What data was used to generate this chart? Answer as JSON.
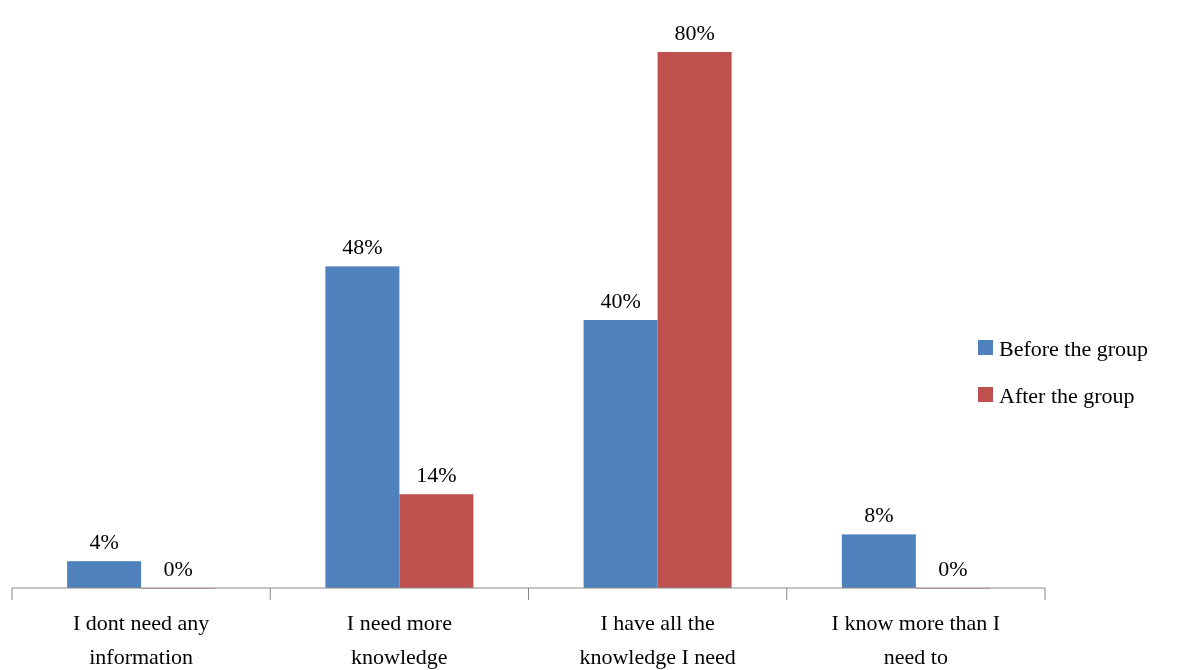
{
  "chart_data": {
    "type": "bar",
    "categories": [
      "I dont need any information",
      "I need more knowledge",
      "I have all the knowledge I need",
      "I know more than I need to"
    ],
    "series": [
      {
        "name": "Before the group",
        "color": "#4f81bd",
        "values": [
          4,
          48,
          40,
          8
        ],
        "value_labels": [
          "4%",
          "48%",
          "40%",
          "8%"
        ]
      },
      {
        "name": "After the group",
        "color": "#c0504d",
        "values": [
          0,
          14,
          80,
          0
        ],
        "value_labels": [
          "0%",
          "14%",
          "80%",
          "0%"
        ]
      }
    ],
    "legend": "right"
  }
}
